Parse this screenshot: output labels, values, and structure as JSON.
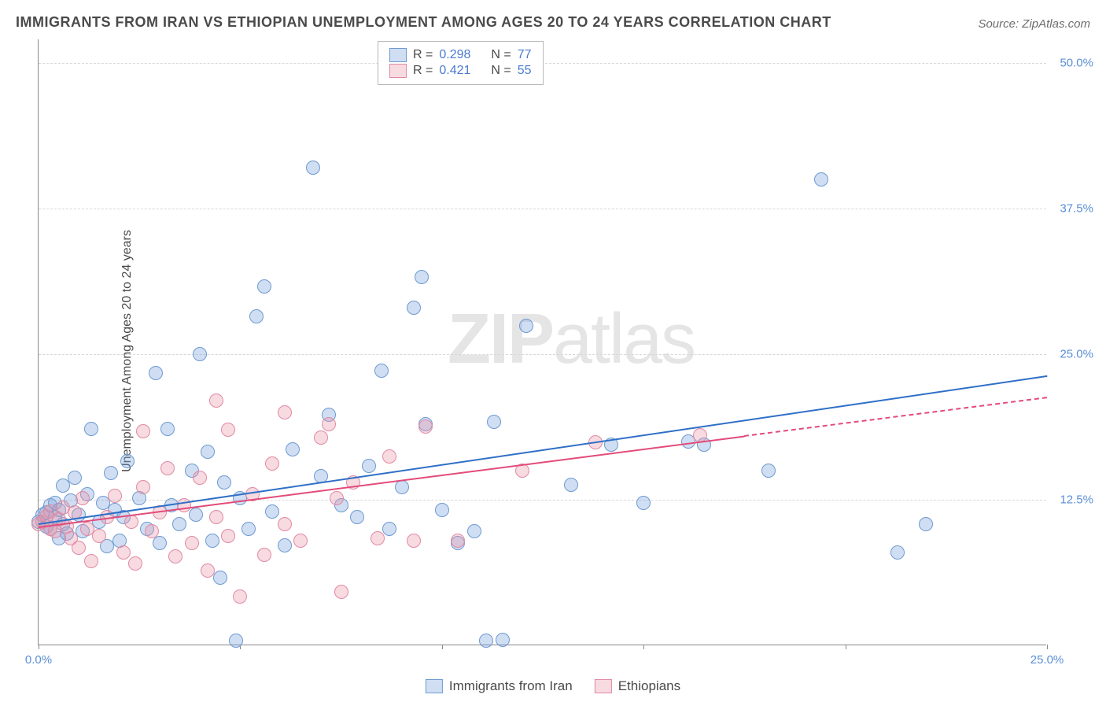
{
  "title": "IMMIGRANTS FROM IRAN VS ETHIOPIAN UNEMPLOYMENT AMONG AGES 20 TO 24 YEARS CORRELATION CHART",
  "source": "Source: ZipAtlas.com",
  "ylabel": "Unemployment Among Ages 20 to 24 years",
  "watermark_a": "ZIP",
  "watermark_b": "atlas",
  "chart": {
    "type": "scatter",
    "xlim": [
      0,
      25
    ],
    "ylim": [
      0,
      52
    ],
    "x_ticks": [
      0,
      5,
      10,
      15,
      20,
      25
    ],
    "x_tick_labels": {
      "0": "0.0%",
      "25": "25.0%"
    },
    "y_gridlines": [
      12.5,
      25,
      37.5,
      50
    ],
    "y_tick_labels": {
      "12.5": "12.5%",
      "25": "25.0%",
      "37.5": "37.5%",
      "50": "50.0%"
    },
    "background_color": "#ffffff",
    "grid_color": "#d8d8d8",
    "point_radius": 9,
    "series": [
      {
        "key": "iran",
        "label": "Immigrants from Iran",
        "fill": "rgba(120,160,220,0.35)",
        "stroke": "#6d9ad0",
        "trend_color": "#2f6fc7",
        "trend": {
          "x1": 0,
          "y1": 10.5,
          "x2": 25,
          "y2": 23.2,
          "dash_after_x": 25
        },
        "R": "0.298",
        "N": "77",
        "points": [
          [
            0.0,
            10.6
          ],
          [
            0.1,
            11.2
          ],
          [
            0.2,
            10.2
          ],
          [
            0.2,
            11.4
          ],
          [
            0.3,
            12.0
          ],
          [
            0.3,
            10.0
          ],
          [
            0.4,
            11.0
          ],
          [
            0.4,
            12.2
          ],
          [
            0.5,
            9.2
          ],
          [
            0.5,
            11.6
          ],
          [
            0.6,
            10.4
          ],
          [
            0.6,
            13.7
          ],
          [
            0.7,
            9.6
          ],
          [
            0.8,
            12.4
          ],
          [
            0.9,
            14.4
          ],
          [
            1.0,
            11.2
          ],
          [
            1.1,
            9.8
          ],
          [
            1.2,
            13.0
          ],
          [
            1.3,
            18.6
          ],
          [
            1.5,
            10.6
          ],
          [
            1.6,
            12.2
          ],
          [
            1.7,
            8.5
          ],
          [
            1.8,
            14.8
          ],
          [
            1.9,
            11.6
          ],
          [
            2.0,
            9.0
          ],
          [
            2.1,
            11.0
          ],
          [
            2.2,
            15.8
          ],
          [
            2.5,
            12.6
          ],
          [
            2.7,
            10.0
          ],
          [
            2.9,
            23.4
          ],
          [
            3.0,
            8.8
          ],
          [
            3.2,
            18.6
          ],
          [
            3.3,
            12.0
          ],
          [
            3.5,
            10.4
          ],
          [
            3.8,
            15.0
          ],
          [
            3.9,
            11.2
          ],
          [
            4.0,
            25.0
          ],
          [
            4.2,
            16.6
          ],
          [
            4.3,
            9.0
          ],
          [
            4.5,
            5.8
          ],
          [
            4.6,
            14.0
          ],
          [
            4.9,
            0.4
          ],
          [
            5.0,
            12.6
          ],
          [
            5.2,
            10.0
          ],
          [
            5.4,
            28.2
          ],
          [
            5.6,
            30.8
          ],
          [
            5.8,
            11.5
          ],
          [
            6.1,
            8.6
          ],
          [
            6.3,
            16.8
          ],
          [
            6.8,
            41.0
          ],
          [
            7.0,
            14.5
          ],
          [
            7.2,
            19.8
          ],
          [
            7.5,
            12.0
          ],
          [
            7.9,
            11.0
          ],
          [
            8.2,
            15.4
          ],
          [
            8.5,
            23.6
          ],
          [
            8.7,
            10.0
          ],
          [
            9.0,
            13.6
          ],
          [
            9.3,
            29.0
          ],
          [
            9.5,
            31.6
          ],
          [
            9.6,
            19.0
          ],
          [
            10.0,
            11.6
          ],
          [
            10.4,
            8.8
          ],
          [
            10.8,
            9.8
          ],
          [
            11.1,
            0.4
          ],
          [
            11.3,
            19.2
          ],
          [
            11.5,
            0.5
          ],
          [
            12.1,
            27.4
          ],
          [
            13.2,
            13.8
          ],
          [
            14.2,
            17.2
          ],
          [
            15.0,
            12.2
          ],
          [
            16.1,
            17.5
          ],
          [
            16.5,
            17.2
          ],
          [
            18.1,
            15.0
          ],
          [
            19.4,
            40.0
          ],
          [
            21.3,
            8.0
          ],
          [
            22.0,
            10.4
          ]
        ]
      },
      {
        "key": "ethiopians",
        "label": "Ethiopians",
        "fill": "rgba(235,150,170,0.35)",
        "stroke": "#e08aa3",
        "trend_color": "#e24b7a",
        "trend": {
          "x1": 0,
          "y1": 10.2,
          "x2": 17.5,
          "y2": 18.0,
          "dash_after_x": 17.5,
          "dash_x2": 25,
          "dash_y2": 21.3
        },
        "R": "0.421",
        "N": "55",
        "points": [
          [
            0.0,
            10.4
          ],
          [
            0.1,
            10.6
          ],
          [
            0.2,
            11.1
          ],
          [
            0.3,
            10.0
          ],
          [
            0.3,
            11.5
          ],
          [
            0.4,
            9.8
          ],
          [
            0.5,
            10.8
          ],
          [
            0.6,
            11.8
          ],
          [
            0.7,
            10.2
          ],
          [
            0.8,
            9.2
          ],
          [
            0.9,
            11.4
          ],
          [
            1.0,
            8.4
          ],
          [
            1.1,
            12.6
          ],
          [
            1.2,
            10.0
          ],
          [
            1.3,
            7.2
          ],
          [
            1.5,
            9.4
          ],
          [
            1.7,
            11.0
          ],
          [
            1.9,
            12.8
          ],
          [
            2.1,
            8.0
          ],
          [
            2.3,
            10.6
          ],
          [
            2.4,
            7.0
          ],
          [
            2.6,
            13.6
          ],
          [
            2.6,
            18.4
          ],
          [
            2.8,
            9.8
          ],
          [
            3.0,
            11.4
          ],
          [
            3.2,
            15.2
          ],
          [
            3.4,
            7.6
          ],
          [
            3.6,
            12.0
          ],
          [
            3.8,
            8.8
          ],
          [
            4.0,
            14.4
          ],
          [
            4.2,
            6.4
          ],
          [
            4.4,
            11.0
          ],
          [
            4.4,
            21.0
          ],
          [
            4.7,
            18.5
          ],
          [
            4.7,
            9.4
          ],
          [
            5.0,
            4.2
          ],
          [
            5.3,
            13.0
          ],
          [
            5.6,
            7.8
          ],
          [
            5.8,
            15.6
          ],
          [
            6.1,
            20.0
          ],
          [
            6.1,
            10.4
          ],
          [
            6.5,
            9.0
          ],
          [
            7.0,
            17.8
          ],
          [
            7.2,
            19.0
          ],
          [
            7.4,
            12.6
          ],
          [
            7.5,
            4.6
          ],
          [
            7.8,
            14.0
          ],
          [
            8.4,
            9.2
          ],
          [
            8.7,
            16.2
          ],
          [
            9.3,
            9.0
          ],
          [
            9.6,
            18.8
          ],
          [
            10.4,
            9.0
          ],
          [
            12.0,
            15.0
          ],
          [
            13.8,
            17.4
          ],
          [
            16.4,
            18.0
          ]
        ]
      }
    ]
  },
  "legend_top": {
    "rows": [
      {
        "swatch_fill": "rgba(120,160,220,0.35)",
        "swatch_stroke": "#6d9ad0",
        "R_lbl": "R =",
        "R": "0.298",
        "N_lbl": "N =",
        "N": "77"
      },
      {
        "swatch_fill": "rgba(235,150,170,0.35)",
        "swatch_stroke": "#e08aa3",
        "R_lbl": "R =",
        "R": "0.421",
        "N_lbl": "N =",
        "N": "55"
      }
    ]
  },
  "axis_legend": [
    {
      "swatch_fill": "rgba(120,160,220,0.35)",
      "swatch_stroke": "#6d9ad0",
      "label": "Immigrants from Iran"
    },
    {
      "swatch_fill": "rgba(235,150,170,0.35)",
      "swatch_stroke": "#e08aa3",
      "label": "Ethiopians"
    }
  ]
}
